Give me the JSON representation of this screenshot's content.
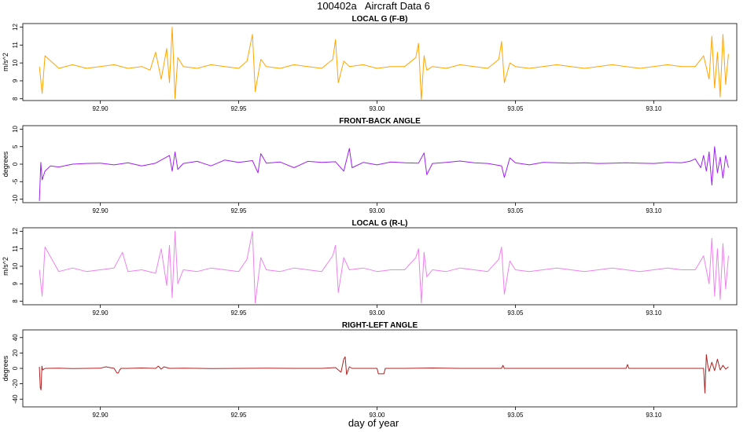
{
  "figure": {
    "title": "100402a   Aircraft Data 6",
    "xlabel": "day of year"
  },
  "chart_data": [
    {
      "type": "line",
      "title": "LOCAL G (F-B)",
      "xlabel": "",
      "ylabel": "m/s^2",
      "xlim": [
        92.872,
        93.13
      ],
      "ylim": [
        7.9,
        12.2
      ],
      "xticks": [
        92.9,
        92.95,
        93.0,
        93.05,
        93.1
      ],
      "xtick_labels": [
        "92.90",
        "92.95",
        "93.00",
        "93.05",
        "93.10"
      ],
      "yticks": [
        8,
        9,
        10,
        11,
        12
      ],
      "ytick_labels": [
        "8",
        "9",
        "10",
        "11",
        "12"
      ],
      "grid": false,
      "series": [
        {
          "color": "#FFA500",
          "x": [
            92.878,
            92.879,
            92.88,
            92.885,
            92.89,
            92.895,
            92.9,
            92.905,
            92.91,
            92.915,
            92.918,
            92.92,
            92.922,
            92.924,
            92.925,
            92.926,
            92.927,
            92.928,
            92.93,
            92.935,
            92.94,
            92.945,
            92.95,
            92.953,
            92.955,
            92.956,
            92.958,
            92.96,
            92.965,
            92.97,
            92.975,
            92.98,
            92.984,
            92.985,
            92.986,
            92.988,
            92.99,
            92.995,
            93.0,
            93.005,
            93.01,
            93.014,
            93.015,
            93.016,
            93.017,
            93.018,
            93.02,
            93.025,
            93.03,
            93.035,
            93.04,
            93.044,
            93.045,
            93.046,
            93.048,
            93.05,
            93.055,
            93.06,
            93.065,
            93.07,
            93.075,
            93.08,
            93.085,
            93.09,
            93.095,
            93.1,
            93.105,
            93.11,
            93.115,
            93.118,
            93.12,
            93.121,
            93.122,
            93.123,
            93.124,
            93.125,
            93.126,
            93.127
          ],
          "y": [
            9.8,
            8.3,
            10.4,
            9.7,
            9.9,
            9.7,
            9.8,
            9.9,
            9.7,
            9.8,
            9.6,
            10.6,
            9.1,
            10.8,
            8.9,
            12.0,
            8.0,
            10.3,
            9.8,
            9.7,
            9.9,
            9.8,
            9.7,
            10.1,
            11.6,
            8.4,
            10.2,
            9.8,
            9.7,
            9.9,
            9.8,
            9.7,
            10.2,
            11.3,
            8.9,
            10.1,
            9.8,
            9.9,
            9.7,
            9.8,
            9.8,
            10.3,
            11.1,
            7.9,
            10.4,
            9.6,
            9.8,
            9.7,
            9.9,
            9.8,
            9.7,
            10.2,
            11.2,
            8.9,
            10.0,
            9.8,
            9.7,
            9.8,
            9.9,
            9.8,
            9.7,
            9.8,
            9.9,
            9.8,
            9.7,
            9.8,
            9.9,
            9.8,
            9.8,
            10.4,
            9.1,
            11.5,
            8.6,
            10.6,
            8.1,
            11.6,
            8.8,
            10.5
          ]
        }
      ]
    },
    {
      "type": "line",
      "title": "FRONT-BACK ANGLE",
      "xlabel": "",
      "ylabel": "degrees",
      "xlim": [
        92.872,
        93.13
      ],
      "ylim": [
        -11,
        11
      ],
      "xticks": [
        92.9,
        92.95,
        93.0,
        93.05,
        93.1
      ],
      "xtick_labels": [
        "92.90",
        "92.95",
        "93.00",
        "93.05",
        "93.10"
      ],
      "yticks": [
        -10,
        -5,
        0,
        5,
        10
      ],
      "ytick_labels": [
        "-10",
        "-5",
        "0",
        "5",
        "10"
      ],
      "grid": false,
      "series": [
        {
          "color": "#A020F0",
          "x": [
            92.878,
            92.8785,
            92.879,
            92.88,
            92.882,
            92.885,
            92.89,
            92.895,
            92.9,
            92.905,
            92.91,
            92.915,
            92.92,
            92.925,
            92.926,
            92.927,
            92.928,
            92.93,
            92.935,
            92.94,
            92.945,
            92.95,
            92.955,
            92.957,
            92.958,
            92.96,
            92.965,
            92.97,
            92.975,
            92.98,
            92.985,
            92.988,
            92.99,
            92.991,
            92.995,
            93.0,
            93.005,
            93.01,
            93.015,
            93.017,
            93.018,
            93.02,
            93.025,
            93.03,
            93.035,
            93.04,
            93.045,
            93.046,
            93.048,
            93.05,
            93.055,
            93.06,
            93.065,
            93.07,
            93.075,
            93.08,
            93.085,
            93.09,
            93.095,
            93.1,
            93.105,
            93.11,
            93.113,
            93.115,
            93.117,
            93.118,
            93.119,
            93.12,
            93.121,
            93.122,
            93.123,
            93.124,
            93.125,
            93.126,
            93.127
          ],
          "y": [
            -10.5,
            0.5,
            -4.5,
            -2.0,
            -0.5,
            -0.8,
            0.0,
            0.2,
            0.3,
            -0.2,
            0.4,
            -0.5,
            0.3,
            2.5,
            -2.0,
            3.5,
            -1.5,
            0.2,
            0.8,
            -0.5,
            1.2,
            0.5,
            1.0,
            -2.5,
            3.0,
            0.3,
            0.6,
            -1.0,
            0.8,
            0.5,
            0.7,
            -2.0,
            4.5,
            -1.0,
            0.5,
            -0.2,
            0.6,
            0.4,
            0.3,
            3.2,
            -3.0,
            0.2,
            0.5,
            0.9,
            0.4,
            0.2,
            -0.5,
            -3.8,
            1.8,
            0.4,
            -0.2,
            0.5,
            0.4,
            0.3,
            0.4,
            0.2,
            0.3,
            0.4,
            0.3,
            0.2,
            0.5,
            0.4,
            0.8,
            1.5,
            -1.0,
            2.5,
            -2.0,
            3.5,
            -6.0,
            5.0,
            -2.5,
            2.0,
            -4.0,
            2.5,
            -1.0
          ]
        }
      ]
    },
    {
      "type": "line",
      "title": "LOCAL G (R-L)",
      "xlabel": "",
      "ylabel": "m/s^2",
      "xlim": [
        92.872,
        93.13
      ],
      "ylim": [
        7.8,
        12.2
      ],
      "xticks": [
        92.9,
        92.95,
        93.0,
        93.05,
        93.1
      ],
      "xtick_labels": [
        "92.90",
        "92.95",
        "93.00",
        "93.05",
        "93.10"
      ],
      "yticks": [
        8,
        9,
        10,
        11,
        12
      ],
      "ytick_labels": [
        "8",
        "9",
        "10",
        "11",
        "12"
      ],
      "grid": false,
      "series": [
        {
          "color": "#EE82EE",
          "x": [
            92.878,
            92.879,
            92.88,
            92.885,
            92.89,
            92.895,
            92.9,
            92.905,
            92.908,
            92.91,
            92.915,
            92.92,
            92.922,
            92.924,
            92.925,
            92.926,
            92.927,
            92.928,
            92.93,
            92.935,
            92.94,
            92.945,
            92.95,
            92.953,
            92.955,
            92.956,
            92.958,
            92.96,
            92.965,
            92.97,
            92.975,
            92.98,
            92.984,
            92.985,
            92.986,
            92.988,
            92.99,
            92.995,
            93.0,
            93.005,
            93.01,
            93.014,
            93.015,
            93.016,
            93.017,
            93.018,
            93.02,
            93.025,
            93.03,
            93.035,
            93.04,
            93.044,
            93.045,
            93.046,
            93.048,
            93.05,
            93.055,
            93.06,
            93.065,
            93.07,
            93.075,
            93.08,
            93.085,
            93.09,
            93.095,
            93.1,
            93.105,
            93.11,
            93.115,
            93.118,
            93.12,
            93.121,
            93.122,
            93.123,
            93.124,
            93.125,
            93.126,
            93.127
          ],
          "y": [
            9.8,
            8.3,
            11.1,
            9.7,
            9.9,
            9.7,
            9.8,
            9.9,
            10.8,
            9.7,
            9.8,
            9.6,
            11.0,
            8.9,
            11.2,
            8.2,
            12.0,
            9.0,
            9.8,
            9.7,
            9.9,
            9.8,
            9.7,
            10.4,
            12.0,
            7.9,
            10.5,
            9.8,
            9.7,
            9.9,
            9.8,
            9.7,
            10.6,
            11.2,
            8.5,
            10.5,
            9.8,
            9.9,
            9.7,
            9.8,
            9.8,
            10.5,
            11.0,
            7.9,
            10.8,
            9.4,
            9.8,
            9.7,
            9.9,
            9.8,
            9.7,
            10.4,
            11.1,
            8.4,
            10.3,
            9.8,
            9.7,
            9.8,
            9.9,
            9.8,
            9.7,
            9.8,
            9.9,
            9.8,
            9.7,
            9.8,
            9.9,
            9.8,
            9.8,
            10.6,
            9.0,
            11.6,
            8.3,
            11.0,
            8.1,
            11.3,
            8.7,
            10.6
          ]
        }
      ]
    },
    {
      "type": "line",
      "title": "RIGHT-LEFT ANGLE",
      "xlabel": "",
      "ylabel": "degrees",
      "xlim": [
        92.872,
        93.13
      ],
      "ylim": [
        -50,
        50
      ],
      "xticks": [
        92.9,
        92.95,
        93.0,
        93.05,
        93.1
      ],
      "xtick_labels": [
        "92.90",
        "92.95",
        "93.00",
        "93.05",
        "93.10"
      ],
      "yticks": [
        -40,
        -20,
        0,
        20,
        40
      ],
      "ytick_labels": [
        "-40",
        "-20",
        "0",
        "20",
        "40"
      ],
      "grid": false,
      "series": [
        {
          "color": "#B22222",
          "x": [
            92.878,
            92.8783,
            92.8786,
            92.8789,
            92.8792,
            92.88,
            92.885,
            92.89,
            92.895,
            92.9,
            92.902,
            92.905,
            92.906,
            92.9065,
            92.907,
            92.9075,
            92.91,
            92.915,
            92.92,
            92.921,
            92.922,
            92.923,
            92.925,
            92.93,
            92.94,
            92.95,
            92.96,
            92.97,
            92.98,
            92.985,
            92.987,
            92.988,
            92.9885,
            92.989,
            92.99,
            92.991,
            92.995,
            93.0,
            93.0005,
            93.002,
            93.0025,
            93.003,
            93.01,
            93.02,
            93.03,
            93.04,
            93.045,
            93.0455,
            93.046,
            93.06,
            93.07,
            93.08,
            93.09,
            93.0905,
            93.091,
            93.1,
            93.11,
            93.115,
            93.118,
            93.1185,
            93.119,
            93.1195,
            93.12,
            93.121,
            93.122,
            93.123,
            93.124,
            93.125,
            93.126,
            93.127
          ],
          "y": [
            2,
            -25,
            -28,
            3,
            -2,
            0,
            0.3,
            -0.2,
            0,
            0.2,
            2,
            0,
            -6,
            -6,
            -2,
            0,
            0,
            0.5,
            0,
            3,
            -1,
            2,
            0,
            0.3,
            -0.2,
            0,
            0.3,
            0,
            0,
            1,
            -5,
            12,
            15,
            -8,
            2,
            0,
            0,
            0,
            -7,
            -7,
            -7,
            0,
            0,
            0.5,
            0,
            0,
            0,
            4,
            0,
            0,
            0,
            0,
            0,
            5,
            0,
            0,
            0,
            0,
            0,
            -32,
            18,
            5,
            -4,
            8,
            -3,
            12,
            -2,
            4,
            -1,
            2
          ]
        }
      ]
    }
  ]
}
